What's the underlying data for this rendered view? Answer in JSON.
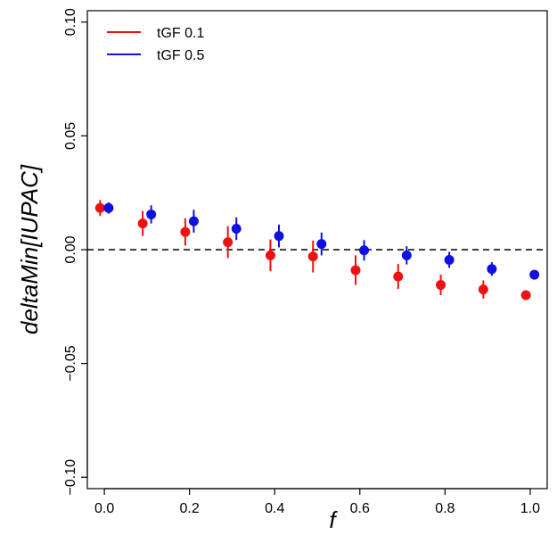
{
  "chart_data": {
    "type": "scatter",
    "title": "",
    "xlabel": "f",
    "ylabel": "deltaMin[IUPAC]",
    "xlim": [
      -0.04,
      1.04
    ],
    "ylim": [
      -0.105,
      0.105
    ],
    "x_ticks": [
      0.0,
      0.2,
      0.4,
      0.6,
      0.8,
      1.0
    ],
    "x_tick_labels": [
      "0.0",
      "0.2",
      "0.4",
      "0.6",
      "0.8",
      "1.0"
    ],
    "y_ticks": [
      -0.1,
      -0.05,
      0.0,
      0.05,
      0.1
    ],
    "y_tick_labels": [
      "−0.10",
      "−0.05",
      "0.00",
      "0.05",
      "0.10"
    ],
    "reference_line": {
      "y": 0.0,
      "style": "dashed",
      "color": "#000000"
    },
    "legend": {
      "position": "top-left",
      "entries": [
        "tGF 0.1",
        "tGF 0.5"
      ]
    },
    "grid": false,
    "series": [
      {
        "name": "tGF 0.1",
        "color": "#ee1111",
        "x": [
          -0.01,
          0.09,
          0.19,
          0.29,
          0.39,
          0.49,
          0.59,
          0.69,
          0.79,
          0.89,
          0.99
        ],
        "y": [
          0.0183,
          0.0115,
          0.0078,
          0.0033,
          -0.0025,
          -0.003,
          -0.009,
          -0.0118,
          -0.0155,
          -0.0175,
          -0.02
        ],
        "err": [
          0.0035,
          0.0055,
          0.006,
          0.007,
          0.007,
          0.007,
          0.0065,
          0.0055,
          0.0045,
          0.004,
          0.0015
        ]
      },
      {
        "name": "tGF 0.5",
        "color": "#1010e0",
        "x": [
          0.01,
          0.11,
          0.21,
          0.31,
          0.41,
          0.51,
          0.61,
          0.71,
          0.81,
          0.91,
          1.01
        ],
        "y": [
          0.0183,
          0.0155,
          0.0125,
          0.0092,
          0.006,
          0.0025,
          -0.0003,
          -0.0025,
          -0.0045,
          -0.0085,
          -0.011
        ],
        "err": [
          0.0025,
          0.004,
          0.005,
          0.005,
          0.005,
          0.005,
          0.0045,
          0.004,
          0.0035,
          0.003,
          0.002
        ]
      }
    ]
  }
}
